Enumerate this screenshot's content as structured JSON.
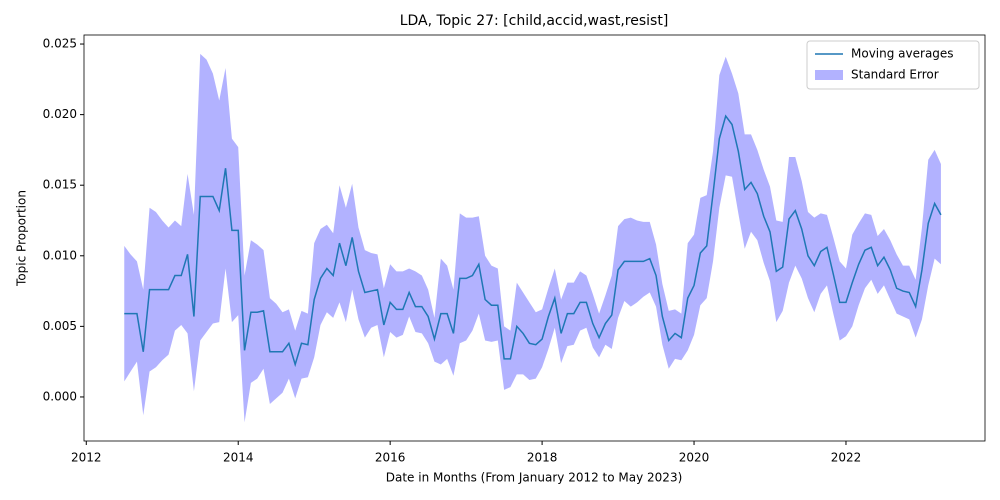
{
  "chart_data": {
    "type": "line_band",
    "title": "LDA, Topic 27: [child,accid,wast,resist]",
    "xlabel": "Date in Months (From January 2012 to May 2023)",
    "ylabel": "Topic Proportion",
    "xlim": [
      2011.97,
      2023.83
    ],
    "ylim": [
      -0.00312,
      0.02564
    ],
    "xticks": [
      2012,
      2014,
      2016,
      2018,
      2020,
      2022
    ],
    "yticks": [
      {
        "value": 0,
        "label": "0.000"
      },
      {
        "value": 0.005,
        "label": "0.005"
      },
      {
        "value": 0.01,
        "label": "0.010"
      },
      {
        "value": 0.015,
        "label": "0.015"
      },
      {
        "value": 0.02,
        "label": "0.020"
      },
      {
        "value": 0.025,
        "label": "0.025"
      }
    ],
    "grid": false,
    "legend": "upper right",
    "x": [
      2012.5,
      2012.583,
      2012.667,
      2012.75,
      2012.833,
      2012.917,
      2013,
      2013.083,
      2013.167,
      2013.25,
      2013.333,
      2013.417,
      2013.5,
      2013.583,
      2013.667,
      2013.75,
      2013.833,
      2013.917,
      2014,
      2014.083,
      2014.167,
      2014.25,
      2014.333,
      2014.417,
      2014.5,
      2014.583,
      2014.667,
      2014.75,
      2014.833,
      2014.917,
      2015,
      2015.083,
      2015.167,
      2015.25,
      2015.333,
      2015.417,
      2015.5,
      2015.583,
      2015.667,
      2015.75,
      2015.833,
      2015.917,
      2016,
      2016.083,
      2016.167,
      2016.25,
      2016.333,
      2016.417,
      2016.5,
      2016.583,
      2016.667,
      2016.75,
      2016.833,
      2016.917,
      2017,
      2017.083,
      2017.167,
      2017.25,
      2017.333,
      2017.417,
      2017.5,
      2017.583,
      2017.667,
      2017.75,
      2017.833,
      2017.917,
      2018,
      2018.083,
      2018.167,
      2018.25,
      2018.333,
      2018.417,
      2018.5,
      2018.583,
      2018.667,
      2018.75,
      2018.833,
      2018.917,
      2019,
      2019.083,
      2019.167,
      2019.25,
      2019.333,
      2019.417,
      2019.5,
      2019.583,
      2019.667,
      2019.75,
      2019.833,
      2019.917,
      2020,
      2020.083,
      2020.167,
      2020.25,
      2020.333,
      2020.417,
      2020.5,
      2020.583,
      2020.667,
      2020.75,
      2020.833,
      2020.917,
      2021,
      2021.083,
      2021.167,
      2021.25,
      2021.333,
      2021.417,
      2021.5,
      2021.583,
      2021.667,
      2021.75,
      2021.833,
      2021.917,
      2022,
      2022.083,
      2022.167,
      2022.25,
      2022.333,
      2022.417,
      2022.5,
      2022.583,
      2022.667,
      2022.75,
      2022.833,
      2022.917,
      2023,
      2023.083,
      2023.167,
      2023.25
    ],
    "series": [
      {
        "name": "Moving averages",
        "color": "#1f77b4",
        "values": [
          0.0059,
          0.0059,
          0.0059,
          0.0032,
          0.0076,
          0.0076,
          0.0076,
          0.0076,
          0.0086,
          0.0086,
          0.0101,
          0.0057,
          0.0142,
          0.0142,
          0.0142,
          0.0132,
          0.0162,
          0.0118,
          0.0118,
          0.0033,
          0.006,
          0.006,
          0.0061,
          0.0032,
          0.0032,
          0.0032,
          0.0038,
          0.0023,
          0.0038,
          0.0037,
          0.0069,
          0.0084,
          0.0091,
          0.0086,
          0.0109,
          0.0093,
          0.0113,
          0.0089,
          0.0074,
          0.0075,
          0.0076,
          0.0051,
          0.0067,
          0.0062,
          0.0062,
          0.0074,
          0.0064,
          0.0064,
          0.0057,
          0.0041,
          0.0059,
          0.0059,
          0.0045,
          0.0084,
          0.0084,
          0.0086,
          0.0094,
          0.0069,
          0.0065,
          0.0065,
          0.0027,
          0.0027,
          0.005,
          0.0045,
          0.0038,
          0.0037,
          0.0041,
          0.0057,
          0.007,
          0.0045,
          0.0059,
          0.0059,
          0.0067,
          0.0067,
          0.0052,
          0.0042,
          0.0052,
          0.0058,
          0.009,
          0.0096,
          0.0096,
          0.0096,
          0.0096,
          0.0098,
          0.0086,
          0.0057,
          0.004,
          0.0045,
          0.0042,
          0.007,
          0.0079,
          0.0102,
          0.0107,
          0.0144,
          0.0183,
          0.0199,
          0.0193,
          0.0174,
          0.0147,
          0.0152,
          0.0144,
          0.0128,
          0.0117,
          0.0089,
          0.0092,
          0.0126,
          0.0132,
          0.0119,
          0.01,
          0.0093,
          0.0103,
          0.0106,
          0.0087,
          0.0067,
          0.0067,
          0.0081,
          0.0094,
          0.0104,
          0.0106,
          0.0093,
          0.0099,
          0.009,
          0.0077,
          0.0075,
          0.0074,
          0.0064,
          0.009,
          0.0123,
          0.0137,
          0.0129
        ]
      }
    ],
    "band": {
      "name": "Standard Error",
      "color": "#0000ff",
      "alpha": 0.3,
      "upper": [
        0.0107,
        0.0101,
        0.0096,
        0.0076,
        0.0134,
        0.0131,
        0.0125,
        0.012,
        0.0125,
        0.0121,
        0.0158,
        0.0129,
        0.0243,
        0.0239,
        0.0229,
        0.021,
        0.0233,
        0.0183,
        0.0177,
        0.0086,
        0.0111,
        0.0108,
        0.0104,
        0.007,
        0.0066,
        0.006,
        0.0062,
        0.0047,
        0.0061,
        0.0059,
        0.0109,
        0.0119,
        0.0122,
        0.0116,
        0.015,
        0.0134,
        0.0151,
        0.012,
        0.0104,
        0.0102,
        0.0101,
        0.0077,
        0.0094,
        0.0089,
        0.0089,
        0.0091,
        0.0089,
        0.0086,
        0.0076,
        0.0056,
        0.0098,
        0.0093,
        0.0076,
        0.013,
        0.0127,
        0.0127,
        0.0128,
        0.01,
        0.0093,
        0.0091,
        0.005,
        0.0047,
        0.0081,
        0.0074,
        0.0067,
        0.006,
        0.0062,
        0.0077,
        0.0091,
        0.0069,
        0.0081,
        0.0081,
        0.0089,
        0.0086,
        0.0073,
        0.0059,
        0.0072,
        0.0086,
        0.0121,
        0.0126,
        0.0127,
        0.0125,
        0.0124,
        0.0124,
        0.0108,
        0.008,
        0.0061,
        0.0062,
        0.0059,
        0.0109,
        0.0115,
        0.0141,
        0.0143,
        0.0174,
        0.0228,
        0.0241,
        0.0229,
        0.0215,
        0.0186,
        0.0186,
        0.0175,
        0.0161,
        0.0149,
        0.0125,
        0.0124,
        0.017,
        0.017,
        0.0153,
        0.0131,
        0.0127,
        0.013,
        0.0129,
        0.0113,
        0.0096,
        0.0091,
        0.0115,
        0.0123,
        0.013,
        0.0129,
        0.0114,
        0.0119,
        0.0111,
        0.0101,
        0.0093,
        0.0093,
        0.0083,
        0.012,
        0.0168,
        0.0175,
        0.0165
      ],
      "lower": [
        0.0011,
        0.0018,
        0.0025,
        -0.0013,
        0.0018,
        0.0021,
        0.0026,
        0.003,
        0.0047,
        0.0051,
        0.0045,
        0.0004,
        0.004,
        0.0046,
        0.0052,
        0.0053,
        0.0091,
        0.0053,
        0.0058,
        -0.0018,
        0.001,
        0.0013,
        0.002,
        -0.0005,
        -0.0001,
        0.0003,
        0.0013,
        -0.0001,
        0.0013,
        0.0014,
        0.0028,
        0.0051,
        0.006,
        0.0056,
        0.0067,
        0.0053,
        0.0076,
        0.0055,
        0.0042,
        0.0049,
        0.0051,
        0.0028,
        0.0046,
        0.0042,
        0.0044,
        0.0057,
        0.0046,
        0.0045,
        0.0038,
        0.0025,
        0.0023,
        0.0027,
        0.0015,
        0.0038,
        0.004,
        0.0047,
        0.0059,
        0.004,
        0.0039,
        0.004,
        0.0005,
        0.0007,
        0.0016,
        0.0016,
        0.0012,
        0.0013,
        0.0021,
        0.0034,
        0.0049,
        0.0024,
        0.0036,
        0.0037,
        0.0047,
        0.0049,
        0.0035,
        0.0028,
        0.0037,
        0.0034,
        0.0056,
        0.0068,
        0.0064,
        0.0067,
        0.0071,
        0.0074,
        0.0064,
        0.0037,
        0.002,
        0.0027,
        0.0026,
        0.0033,
        0.0044,
        0.0065,
        0.007,
        0.0096,
        0.0134,
        0.0157,
        0.0156,
        0.013,
        0.0105,
        0.0117,
        0.0111,
        0.0095,
        0.0082,
        0.0053,
        0.0061,
        0.0081,
        0.0093,
        0.0084,
        0.007,
        0.006,
        0.0073,
        0.0079,
        0.0059,
        0.004,
        0.0043,
        0.005,
        0.0065,
        0.0077,
        0.0083,
        0.0073,
        0.0079,
        0.0069,
        0.0059,
        0.0057,
        0.0055,
        0.0042,
        0.0055,
        0.0079,
        0.0098,
        0.0094
      ]
    }
  }
}
